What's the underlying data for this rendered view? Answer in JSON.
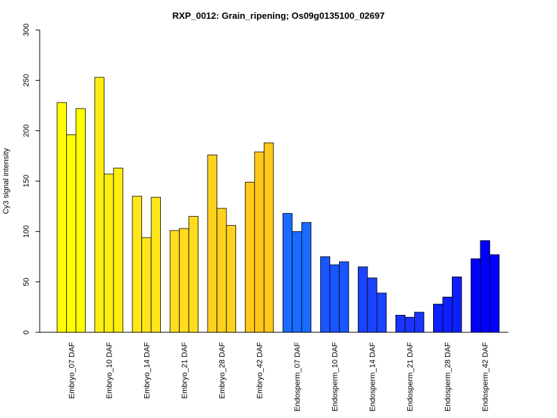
{
  "chart_data": {
    "type": "bar",
    "title": "RXP_0012: Grain_ripening; Os09g0135100_02697",
    "xlabel": "",
    "ylabel": "Cy3 signal intensity",
    "ylim": [
      0,
      300
    ],
    "yticks": [
      0,
      50,
      100,
      150,
      200,
      250,
      300
    ],
    "categories": [
      "Embryo_07 DAF",
      "Embryo_10 DAF",
      "Embryo_14 DAF",
      "Embryo_21 DAF",
      "Embryo_28 DAF",
      "Embryo_42 DAF",
      "Endosperm_07 DAF",
      "Endosperm_10 DAF",
      "Endosperm_14 DAF",
      "Endosperm_21 DAF",
      "Endosperm_28 DAF",
      "Endosperm_42 DAF"
    ],
    "group_colors": [
      "#ffff00",
      "#ffee11",
      "#ffe61a",
      "#ffdc20",
      "#ffd21f",
      "#ffc81a",
      "#1a6bff",
      "#1a55ff",
      "#1a44ff",
      "#1a33ff",
      "#0d20ff",
      "#0000ff"
    ],
    "values": [
      [
        228,
        196,
        222
      ],
      [
        253,
        157,
        163
      ],
      [
        135,
        94,
        134
      ],
      [
        101,
        103,
        115
      ],
      [
        176,
        123,
        106
      ],
      [
        149,
        179,
        188
      ],
      [
        118,
        100,
        109
      ],
      [
        75,
        67,
        70
      ],
      [
        65,
        54,
        39
      ],
      [
        17,
        15,
        20
      ],
      [
        28,
        35,
        55
      ],
      [
        73,
        91,
        77
      ]
    ],
    "grid": false,
    "legend": "none"
  }
}
